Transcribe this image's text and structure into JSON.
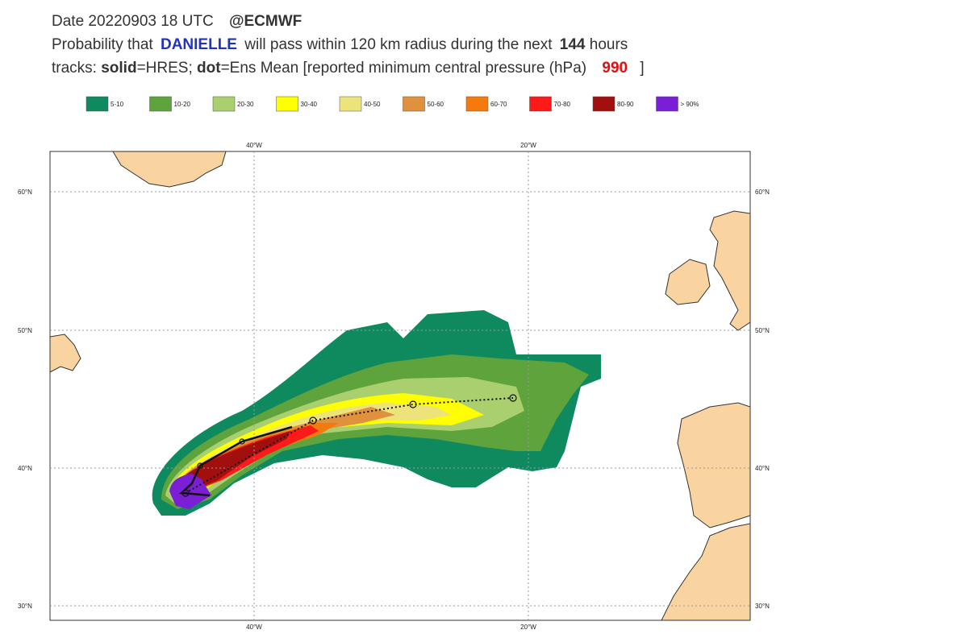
{
  "header": {
    "line1": {
      "date": "Date 20220903 18 UTC",
      "source": "@ECMWF"
    },
    "line2": {
      "prefix": "Probability that",
      "storm": "DANIELLE",
      "middle": "will pass within 120 km radius during the next",
      "hours_value": "144",
      "hours_unit": "hours"
    },
    "line3": {
      "prefix": "tracks:",
      "solid": "solid",
      "solid_desc": "=HRES;",
      "dot": "dot",
      "dot_desc": "=Ens Mean [reported minimum central pressure (hPa)",
      "pressure": "990",
      "suffix": "]"
    }
  },
  "legend": {
    "items": [
      {
        "label": "5-10",
        "color": "#0f8a5f"
      },
      {
        "label": "10-20",
        "color": "#5ea33b"
      },
      {
        "label": "20-30",
        "color": "#a9cf6f"
      },
      {
        "label": "30-40",
        "color": "#ffff00"
      },
      {
        "label": "40-50",
        "color": "#ece37b"
      },
      {
        "label": "50-60",
        "color": "#df913d"
      },
      {
        "label": "60-70",
        "color": "#f47a10"
      },
      {
        "label": "70-80",
        "color": "#ff1a1a"
      },
      {
        "label": "80-90",
        "color": "#a10f0f"
      },
      {
        "label": "> 90%",
        "color": "#7a1fd6"
      }
    ]
  },
  "map": {
    "lon_labels": [
      "40°W",
      "20°W"
    ],
    "lat_labels": [
      "60°N",
      "50°N",
      "40°N",
      "30°N"
    ]
  }
}
